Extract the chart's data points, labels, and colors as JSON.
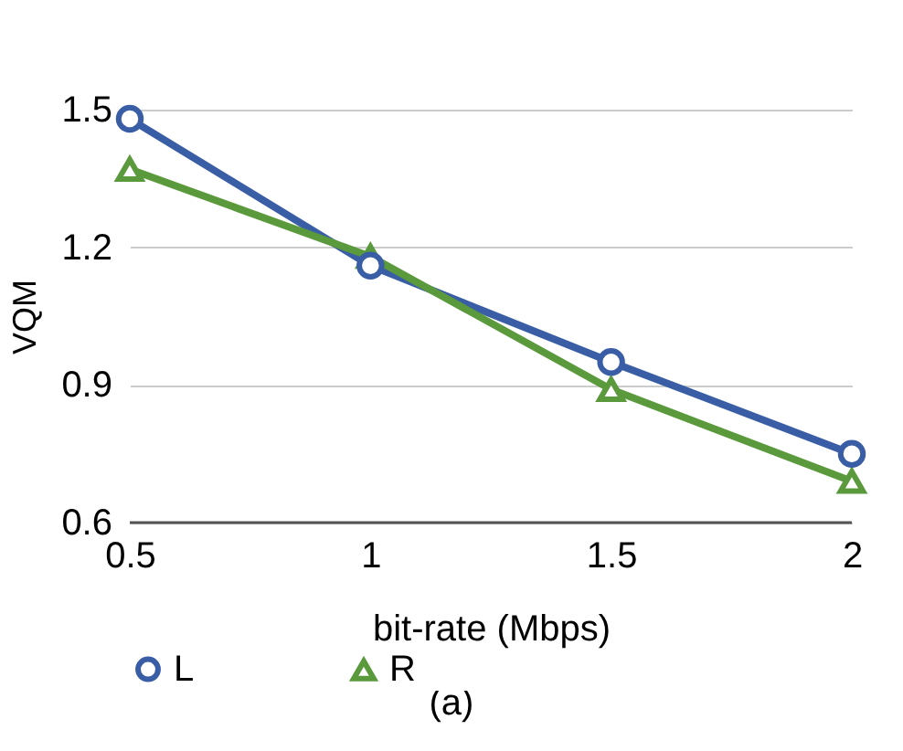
{
  "chart_data": {
    "type": "line",
    "xlabel": "bit-rate (Mbps)",
    "ylabel": "VQM",
    "annotations": [
      "(a)"
    ],
    "x": [
      0.5,
      1,
      1.5,
      2
    ],
    "series": [
      {
        "name": "L",
        "color": "#3a5ea6",
        "values": [
          1.48,
          1.16,
          0.95,
          0.75
        ],
        "marker": "circle"
      },
      {
        "name": "R",
        "color": "#5b9a3c",
        "values": [
          1.37,
          1.18,
          0.89,
          0.69
        ],
        "marker": "triangle"
      }
    ],
    "xlim": [
      0.5,
      2
    ],
    "xticks": [
      0.5,
      1,
      1.5,
      2
    ],
    "ylim": [
      0.6,
      1.5
    ],
    "yticks": [
      0.6,
      0.9,
      1.2,
      1.5
    ],
    "grid": "y",
    "legend": "bottom"
  }
}
